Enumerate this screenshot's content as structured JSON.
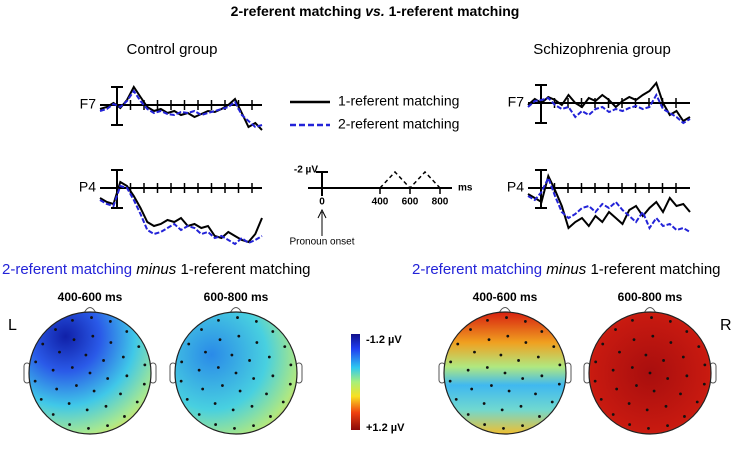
{
  "title": {
    "before": "2-referent matching",
    "italic": "vs.",
    "after": "1-referent matching"
  },
  "groups": [
    {
      "name": "Control group"
    },
    {
      "name": "Schizophrenia group"
    }
  ],
  "channels": [
    "F7",
    "P4"
  ],
  "legend": [
    {
      "label": "1-referent matching",
      "color": "#000000",
      "dashed": false
    },
    {
      "label": "2-referent matching",
      "color": "#2323d8",
      "dashed": true
    }
  ],
  "scale": {
    "amplitude": "-2 µV",
    "unit": "ms",
    "ticks": [
      "0",
      "400",
      "600",
      "800"
    ],
    "onset": "Pronoun onset"
  },
  "difference": {
    "before": "2-referent matching",
    "italic": "minus",
    "after": "1-referent matching"
  },
  "windows": [
    "400-600 ms",
    "600-800 ms"
  ],
  "colorbar": {
    "top": "-1.2 µV",
    "bottom": "+1.2 µV"
  },
  "hemispheres": {
    "left": "L",
    "right": "R"
  }
}
